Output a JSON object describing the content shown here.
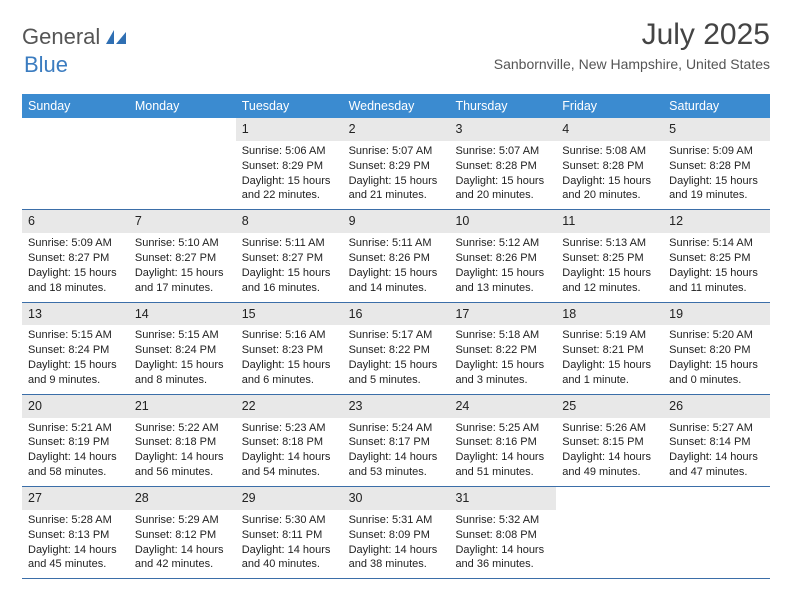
{
  "logo": {
    "word1": "General",
    "word2": "Blue"
  },
  "title": "July 2025",
  "location": "Sanbornville, New Hampshire, United States",
  "colors": {
    "header_bg": "#3b8bd0",
    "header_text": "#ffffff",
    "daynum_bg": "#e8e8e8",
    "row_border": "#3b6ea8",
    "logo_blue": "#3b7cc0"
  },
  "day_labels": [
    "Sunday",
    "Monday",
    "Tuesday",
    "Wednesday",
    "Thursday",
    "Friday",
    "Saturday"
  ],
  "weeks": [
    [
      {
        "num": "",
        "lines": [
          "",
          "",
          "",
          ""
        ]
      },
      {
        "num": "",
        "lines": [
          "",
          "",
          "",
          ""
        ]
      },
      {
        "num": "1",
        "lines": [
          "Sunrise: 5:06 AM",
          "Sunset: 8:29 PM",
          "Daylight: 15 hours",
          "and 22 minutes."
        ]
      },
      {
        "num": "2",
        "lines": [
          "Sunrise: 5:07 AM",
          "Sunset: 8:29 PM",
          "Daylight: 15 hours",
          "and 21 minutes."
        ]
      },
      {
        "num": "3",
        "lines": [
          "Sunrise: 5:07 AM",
          "Sunset: 8:28 PM",
          "Daylight: 15 hours",
          "and 20 minutes."
        ]
      },
      {
        "num": "4",
        "lines": [
          "Sunrise: 5:08 AM",
          "Sunset: 8:28 PM",
          "Daylight: 15 hours",
          "and 20 minutes."
        ]
      },
      {
        "num": "5",
        "lines": [
          "Sunrise: 5:09 AM",
          "Sunset: 8:28 PM",
          "Daylight: 15 hours",
          "and 19 minutes."
        ]
      }
    ],
    [
      {
        "num": "6",
        "lines": [
          "Sunrise: 5:09 AM",
          "Sunset: 8:27 PM",
          "Daylight: 15 hours",
          "and 18 minutes."
        ]
      },
      {
        "num": "7",
        "lines": [
          "Sunrise: 5:10 AM",
          "Sunset: 8:27 PM",
          "Daylight: 15 hours",
          "and 17 minutes."
        ]
      },
      {
        "num": "8",
        "lines": [
          "Sunrise: 5:11 AM",
          "Sunset: 8:27 PM",
          "Daylight: 15 hours",
          "and 16 minutes."
        ]
      },
      {
        "num": "9",
        "lines": [
          "Sunrise: 5:11 AM",
          "Sunset: 8:26 PM",
          "Daylight: 15 hours",
          "and 14 minutes."
        ]
      },
      {
        "num": "10",
        "lines": [
          "Sunrise: 5:12 AM",
          "Sunset: 8:26 PM",
          "Daylight: 15 hours",
          "and 13 minutes."
        ]
      },
      {
        "num": "11",
        "lines": [
          "Sunrise: 5:13 AM",
          "Sunset: 8:25 PM",
          "Daylight: 15 hours",
          "and 12 minutes."
        ]
      },
      {
        "num": "12",
        "lines": [
          "Sunrise: 5:14 AM",
          "Sunset: 8:25 PM",
          "Daylight: 15 hours",
          "and 11 minutes."
        ]
      }
    ],
    [
      {
        "num": "13",
        "lines": [
          "Sunrise: 5:15 AM",
          "Sunset: 8:24 PM",
          "Daylight: 15 hours",
          "and 9 minutes."
        ]
      },
      {
        "num": "14",
        "lines": [
          "Sunrise: 5:15 AM",
          "Sunset: 8:24 PM",
          "Daylight: 15 hours",
          "and 8 minutes."
        ]
      },
      {
        "num": "15",
        "lines": [
          "Sunrise: 5:16 AM",
          "Sunset: 8:23 PM",
          "Daylight: 15 hours",
          "and 6 minutes."
        ]
      },
      {
        "num": "16",
        "lines": [
          "Sunrise: 5:17 AM",
          "Sunset: 8:22 PM",
          "Daylight: 15 hours",
          "and 5 minutes."
        ]
      },
      {
        "num": "17",
        "lines": [
          "Sunrise: 5:18 AM",
          "Sunset: 8:22 PM",
          "Daylight: 15 hours",
          "and 3 minutes."
        ]
      },
      {
        "num": "18",
        "lines": [
          "Sunrise: 5:19 AM",
          "Sunset: 8:21 PM",
          "Daylight: 15 hours",
          "and 1 minute."
        ]
      },
      {
        "num": "19",
        "lines": [
          "Sunrise: 5:20 AM",
          "Sunset: 8:20 PM",
          "Daylight: 15 hours",
          "and 0 minutes."
        ]
      }
    ],
    [
      {
        "num": "20",
        "lines": [
          "Sunrise: 5:21 AM",
          "Sunset: 8:19 PM",
          "Daylight: 14 hours",
          "and 58 minutes."
        ]
      },
      {
        "num": "21",
        "lines": [
          "Sunrise: 5:22 AM",
          "Sunset: 8:18 PM",
          "Daylight: 14 hours",
          "and 56 minutes."
        ]
      },
      {
        "num": "22",
        "lines": [
          "Sunrise: 5:23 AM",
          "Sunset: 8:18 PM",
          "Daylight: 14 hours",
          "and 54 minutes."
        ]
      },
      {
        "num": "23",
        "lines": [
          "Sunrise: 5:24 AM",
          "Sunset: 8:17 PM",
          "Daylight: 14 hours",
          "and 53 minutes."
        ]
      },
      {
        "num": "24",
        "lines": [
          "Sunrise: 5:25 AM",
          "Sunset: 8:16 PM",
          "Daylight: 14 hours",
          "and 51 minutes."
        ]
      },
      {
        "num": "25",
        "lines": [
          "Sunrise: 5:26 AM",
          "Sunset: 8:15 PM",
          "Daylight: 14 hours",
          "and 49 minutes."
        ]
      },
      {
        "num": "26",
        "lines": [
          "Sunrise: 5:27 AM",
          "Sunset: 8:14 PM",
          "Daylight: 14 hours",
          "and 47 minutes."
        ]
      }
    ],
    [
      {
        "num": "27",
        "lines": [
          "Sunrise: 5:28 AM",
          "Sunset: 8:13 PM",
          "Daylight: 14 hours",
          "and 45 minutes."
        ]
      },
      {
        "num": "28",
        "lines": [
          "Sunrise: 5:29 AM",
          "Sunset: 8:12 PM",
          "Daylight: 14 hours",
          "and 42 minutes."
        ]
      },
      {
        "num": "29",
        "lines": [
          "Sunrise: 5:30 AM",
          "Sunset: 8:11 PM",
          "Daylight: 14 hours",
          "and 40 minutes."
        ]
      },
      {
        "num": "30",
        "lines": [
          "Sunrise: 5:31 AM",
          "Sunset: 8:09 PM",
          "Daylight: 14 hours",
          "and 38 minutes."
        ]
      },
      {
        "num": "31",
        "lines": [
          "Sunrise: 5:32 AM",
          "Sunset: 8:08 PM",
          "Daylight: 14 hours",
          "and 36 minutes."
        ]
      },
      {
        "num": "",
        "lines": [
          "",
          "",
          "",
          ""
        ]
      },
      {
        "num": "",
        "lines": [
          "",
          "",
          "",
          ""
        ]
      }
    ]
  ]
}
